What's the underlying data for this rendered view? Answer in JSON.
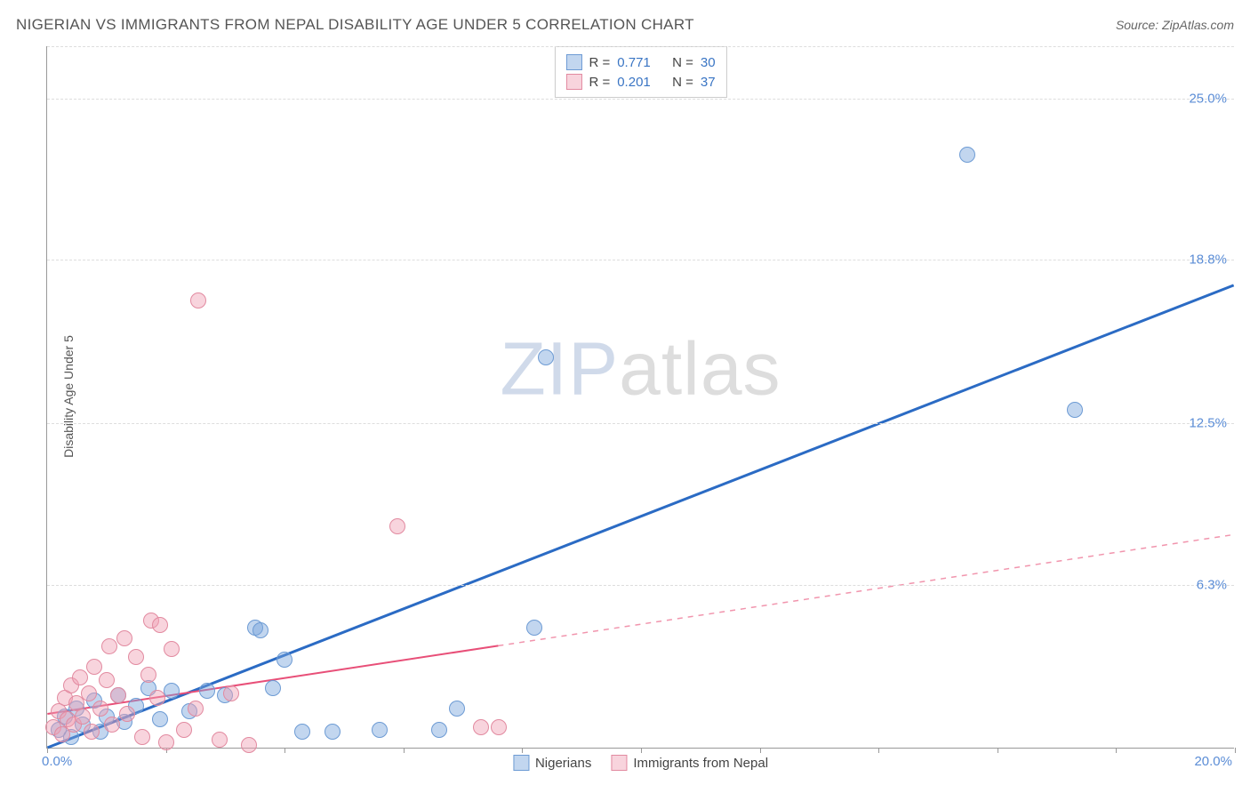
{
  "header": {
    "title": "NIGERIAN VS IMMIGRANTS FROM NEPAL DISABILITY AGE UNDER 5 CORRELATION CHART",
    "source_label": "Source: ",
    "source_name": "ZipAtlas.com"
  },
  "axes": {
    "y_label": "Disability Age Under 5",
    "x_min": 0,
    "x_max": 20,
    "y_min": 0,
    "y_max": 27,
    "y_ticks": [
      {
        "v": 6.3,
        "label": "6.3%"
      },
      {
        "v": 12.5,
        "label": "12.5%"
      },
      {
        "v": 18.8,
        "label": "18.8%"
      },
      {
        "v": 25.0,
        "label": "25.0%"
      }
    ],
    "x_tick_positions": [
      0,
      2,
      4,
      6,
      8,
      10,
      12,
      14,
      16,
      18,
      20
    ],
    "x_origin_label": "0.0%",
    "x_max_label": "20.0%",
    "grid_color": "#dddddd"
  },
  "watermark": {
    "zip": "ZIP",
    "atlas": "atlas"
  },
  "series": [
    {
      "key": "nigerians",
      "label": "Nigerians",
      "fill": "rgba(120,165,220,0.45)",
      "stroke": "#6d9bd4",
      "line_color": "#2b6bc4",
      "line_width": 3,
      "trend": {
        "x1": 0,
        "y1": 0,
        "x2": 20,
        "y2": 17.8,
        "solid_until_x": 20
      },
      "r_label": "R = ",
      "r": "0.771",
      "n_label": "N = ",
      "n": "30",
      "marker_r": 9,
      "points": [
        {
          "x": 0.2,
          "y": 0.7
        },
        {
          "x": 0.3,
          "y": 1.2
        },
        {
          "x": 0.4,
          "y": 0.4
        },
        {
          "x": 0.5,
          "y": 1.5
        },
        {
          "x": 0.6,
          "y": 0.9
        },
        {
          "x": 0.8,
          "y": 1.8
        },
        {
          "x": 0.9,
          "y": 0.6
        },
        {
          "x": 1.0,
          "y": 1.2
        },
        {
          "x": 1.2,
          "y": 2.0
        },
        {
          "x": 1.3,
          "y": 1.0
        },
        {
          "x": 1.5,
          "y": 1.6
        },
        {
          "x": 1.7,
          "y": 2.3
        },
        {
          "x": 1.9,
          "y": 1.1
        },
        {
          "x": 2.1,
          "y": 2.2
        },
        {
          "x": 2.4,
          "y": 1.4
        },
        {
          "x": 2.7,
          "y": 2.2
        },
        {
          "x": 3.0,
          "y": 2.0
        },
        {
          "x": 3.5,
          "y": 4.6
        },
        {
          "x": 3.6,
          "y": 4.5
        },
        {
          "x": 3.8,
          "y": 2.3
        },
        {
          "x": 4.0,
          "y": 3.4
        },
        {
          "x": 4.3,
          "y": 0.6
        },
        {
          "x": 4.8,
          "y": 0.6
        },
        {
          "x": 5.6,
          "y": 0.7
        },
        {
          "x": 6.6,
          "y": 0.7
        },
        {
          "x": 6.9,
          "y": 1.5
        },
        {
          "x": 8.2,
          "y": 4.6
        },
        {
          "x": 8.4,
          "y": 15.0
        },
        {
          "x": 15.5,
          "y": 22.8
        },
        {
          "x": 17.3,
          "y": 13.0
        }
      ]
    },
    {
      "key": "nepal",
      "label": "Immigrants from Nepal",
      "fill": "rgba(240,160,180,0.45)",
      "stroke": "#e28aa0",
      "line_color": "#e84f78",
      "line_width": 2,
      "trend": {
        "x1": 0,
        "y1": 1.3,
        "x2": 20,
        "y2": 8.2,
        "solid_until_x": 7.6
      },
      "r_label": "R = ",
      "r": "0.201",
      "n_label": "N = ",
      "n": "37",
      "marker_r": 9,
      "points": [
        {
          "x": 0.1,
          "y": 0.8
        },
        {
          "x": 0.2,
          "y": 1.4
        },
        {
          "x": 0.25,
          "y": 0.5
        },
        {
          "x": 0.3,
          "y": 1.9
        },
        {
          "x": 0.35,
          "y": 1.1
        },
        {
          "x": 0.4,
          "y": 2.4
        },
        {
          "x": 0.45,
          "y": 0.9
        },
        {
          "x": 0.5,
          "y": 1.7
        },
        {
          "x": 0.55,
          "y": 2.7
        },
        {
          "x": 0.6,
          "y": 1.2
        },
        {
          "x": 0.7,
          "y": 2.1
        },
        {
          "x": 0.75,
          "y": 0.6
        },
        {
          "x": 0.8,
          "y": 3.1
        },
        {
          "x": 0.9,
          "y": 1.5
        },
        {
          "x": 1.0,
          "y": 2.6
        },
        {
          "x": 1.05,
          "y": 3.9
        },
        {
          "x": 1.1,
          "y": 0.9
        },
        {
          "x": 1.2,
          "y": 2.0
        },
        {
          "x": 1.3,
          "y": 4.2
        },
        {
          "x": 1.35,
          "y": 1.3
        },
        {
          "x": 1.5,
          "y": 3.5
        },
        {
          "x": 1.6,
          "y": 0.4
        },
        {
          "x": 1.7,
          "y": 2.8
        },
        {
          "x": 1.75,
          "y": 4.9
        },
        {
          "x": 1.85,
          "y": 1.9
        },
        {
          "x": 1.9,
          "y": 4.7
        },
        {
          "x": 2.0,
          "y": 0.2
        },
        {
          "x": 2.1,
          "y": 3.8
        },
        {
          "x": 2.3,
          "y": 0.7
        },
        {
          "x": 2.5,
          "y": 1.5
        },
        {
          "x": 2.55,
          "y": 17.2
        },
        {
          "x": 2.9,
          "y": 0.3
        },
        {
          "x": 3.1,
          "y": 2.1
        },
        {
          "x": 3.4,
          "y": 0.1
        },
        {
          "x": 5.9,
          "y": 8.5
        },
        {
          "x": 7.3,
          "y": 0.8
        },
        {
          "x": 7.6,
          "y": 0.8
        }
      ]
    }
  ]
}
